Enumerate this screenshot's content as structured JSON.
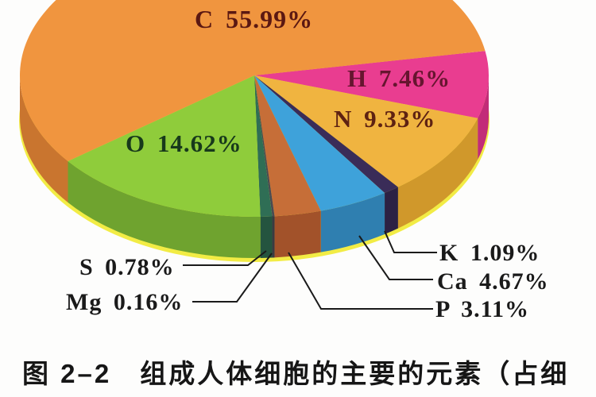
{
  "chart_data": {
    "type": "pie",
    "style": "3d",
    "unit": "%",
    "title": "",
    "caption": "图 2–2　组成人体细胞的主要的元素（占细",
    "legend_position": "labels-on-and-around-pie",
    "background_color": "#FDFDFC",
    "bottom_glow_color": "#F2EC45",
    "leader_line_color": "#1A1A1A",
    "slices": [
      {
        "label": "C",
        "value": 55.99,
        "text": "C 55.99%",
        "color": "#F0953F",
        "side_color": "#C9752F",
        "label_color": "#5B1812"
      },
      {
        "label": "H",
        "value": 7.46,
        "text": "H 7.46%",
        "color": "#E93D90",
        "side_color": "#C22C78",
        "label_color": "#66152F"
      },
      {
        "label": "N",
        "value": 9.33,
        "text": "N 9.33%",
        "color": "#F0B440",
        "side_color": "#D0982B",
        "label_color": "#5E2212"
      },
      {
        "label": "O",
        "value": 14.62,
        "text": "O 14.62%",
        "color": "#8FCC3B",
        "side_color": "#6FA32F",
        "label_color": "#17391B"
      },
      {
        "label": "S",
        "value": 0.78,
        "text": "S 0.78%",
        "color": "#2F6E55",
        "side_color": "#24543F",
        "label_color": "#1A1A1A"
      },
      {
        "label": "Mg",
        "value": 0.16,
        "text": "Mg 0.16%",
        "color": "#4A4A52",
        "side_color": "#3A3A42",
        "label_color": "#1A1A1A"
      },
      {
        "label": "K",
        "value": 1.09,
        "text": "K 1.09%",
        "color": "#3A2C58",
        "side_color": "#2C2144",
        "label_color": "#1A1A1A"
      },
      {
        "label": "Ca",
        "value": 4.67,
        "text": "Ca 4.67%",
        "color": "#3EA2DA",
        "side_color": "#2F7FB0",
        "label_color": "#1A1A1A"
      },
      {
        "label": "P",
        "value": 3.11,
        "text": "P 3.11%",
        "color": "#C66E38",
        "side_color": "#A2522A",
        "label_color": "#1A1A1A"
      }
    ]
  }
}
